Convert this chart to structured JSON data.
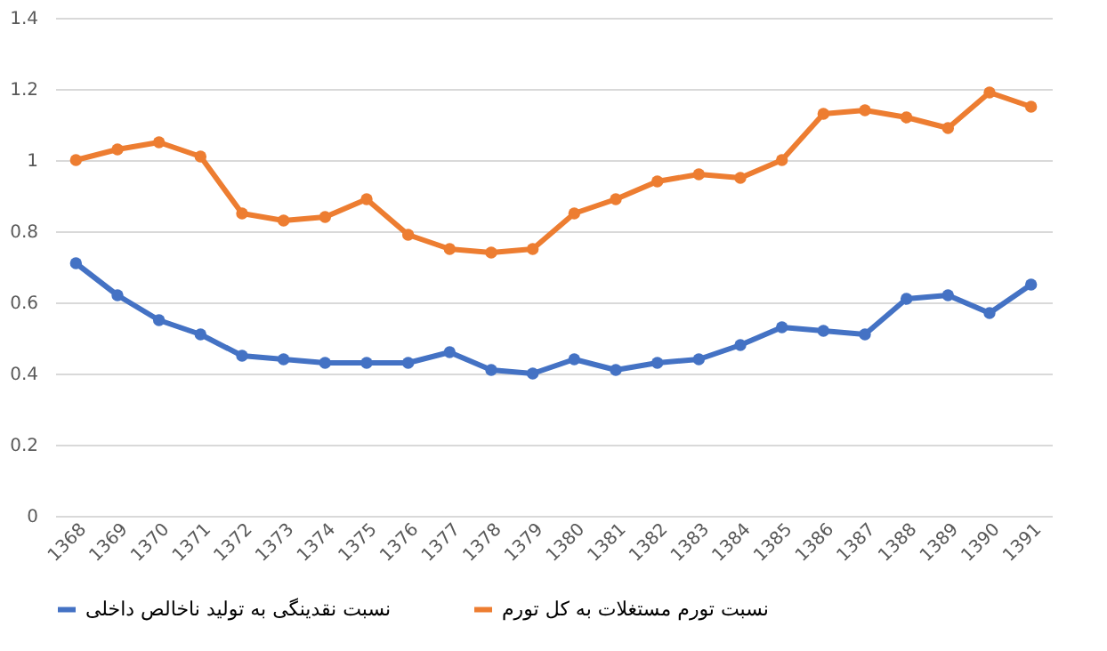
{
  "chart_data": {
    "type": "line",
    "categories": [
      "1368",
      "1369",
      "1370",
      "1371",
      "1372",
      "1373",
      "1374",
      "1375",
      "1376",
      "1377",
      "1378",
      "1379",
      "1380",
      "1381",
      "1382",
      "1383",
      "1384",
      "1385",
      "1386",
      "1387",
      "1388",
      "1389",
      "1390",
      "1391"
    ],
    "series": [
      {
        "name": "نسبت نقدینگی به تولید ناخالص داخلی",
        "color": "#4472c4",
        "values": [
          0.71,
          0.62,
          0.55,
          0.51,
          0.45,
          0.44,
          0.43,
          0.43,
          0.43,
          0.46,
          0.41,
          0.4,
          0.44,
          0.41,
          0.43,
          0.44,
          0.48,
          0.53,
          0.52,
          0.51,
          0.61,
          0.62,
          0.57,
          0.65
        ]
      },
      {
        "name": "نسبت تورم مستغلات به کل تورم",
        "color": "#ed7d31",
        "values": [
          1.0,
          1.03,
          1.05,
          1.01,
          0.85,
          0.83,
          0.84,
          0.89,
          0.79,
          0.75,
          0.74,
          0.75,
          0.85,
          0.89,
          0.94,
          0.96,
          0.95,
          1.0,
          1.13,
          1.14,
          1.12,
          1.09,
          1.19,
          1.15
        ]
      }
    ],
    "ylim": [
      0,
      1.4
    ],
    "yticks": [
      0,
      0.2,
      0.4,
      0.6,
      0.8,
      1,
      1.2,
      1.4
    ],
    "grid": "y",
    "legend": "bottom",
    "marker": "circle",
    "line_style": "solid"
  }
}
